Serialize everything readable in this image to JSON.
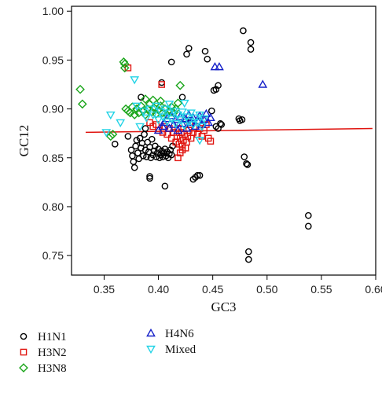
{
  "chart_data": {
    "type": "scatter",
    "xlabel": "GC3",
    "ylabel": "GC12",
    "xlim": [
      0.32,
      0.6
    ],
    "ylim": [
      0.73,
      1.005
    ],
    "xticks": [
      0.35,
      0.4,
      0.45,
      0.5,
      0.55,
      0.6
    ],
    "xtick_labels": [
      "0.35",
      "0.40",
      "0.45",
      "0.50",
      "0.55",
      "0.60"
    ],
    "yticks": [
      0.75,
      0.8,
      0.85,
      0.9,
      0.95,
      1.0
    ],
    "ytick_labels": [
      "0.75",
      "0.80",
      "0.85",
      "0.90",
      "0.95",
      "1.00"
    ],
    "grid": false,
    "legend_position": "bottom",
    "trend_line": {
      "x": [
        0.333,
        0.597
      ],
      "y": [
        0.876,
        0.88
      ],
      "color": "#e0140f"
    },
    "series": [
      {
        "name": "H1N1",
        "marker": "circle",
        "color": "#000000",
        "points": [
          [
            0.36,
            0.864
          ],
          [
            0.372,
            0.872
          ],
          [
            0.375,
            0.858
          ],
          [
            0.376,
            0.852
          ],
          [
            0.377,
            0.846
          ],
          [
            0.378,
            0.84
          ],
          [
            0.379,
            0.862
          ],
          [
            0.38,
            0.868
          ],
          [
            0.381,
            0.855
          ],
          [
            0.382,
            0.849
          ],
          [
            0.383,
            0.87
          ],
          [
            0.384,
            0.86
          ],
          [
            0.385,
            0.865
          ],
          [
            0.386,
            0.852
          ],
          [
            0.387,
            0.874
          ],
          [
            0.388,
            0.858
          ],
          [
            0.389,
            0.851
          ],
          [
            0.39,
            0.866
          ],
          [
            0.391,
            0.856
          ],
          [
            0.392,
            0.861
          ],
          [
            0.393,
            0.85
          ],
          [
            0.394,
            0.869
          ],
          [
            0.395,
            0.853
          ],
          [
            0.396,
            0.857
          ],
          [
            0.397,
            0.862
          ],
          [
            0.398,
            0.851
          ],
          [
            0.399,
            0.855
          ],
          [
            0.4,
            0.859
          ],
          [
            0.401,
            0.85
          ],
          [
            0.402,
            0.853
          ],
          [
            0.403,
            0.857
          ],
          [
            0.404,
            0.851
          ],
          [
            0.405,
            0.855
          ],
          [
            0.406,
            0.859
          ],
          [
            0.407,
            0.852
          ],
          [
            0.408,
            0.856
          ],
          [
            0.409,
            0.85
          ],
          [
            0.41,
            0.854
          ],
          [
            0.411,
            0.858
          ],
          [
            0.412,
            0.853
          ],
          [
            0.413,
            0.862
          ],
          [
            0.384,
            0.912
          ],
          [
            0.388,
            0.88
          ],
          [
            0.392,
            0.829
          ],
          [
            0.392,
            0.831
          ],
          [
            0.406,
            0.821
          ],
          [
            0.403,
            0.927
          ],
          [
            0.412,
            0.948
          ],
          [
            0.426,
            0.956
          ],
          [
            0.428,
            0.962
          ],
          [
            0.422,
            0.912
          ],
          [
            0.425,
            0.889
          ],
          [
            0.432,
            0.828
          ],
          [
            0.434,
            0.83
          ],
          [
            0.436,
            0.832
          ],
          [
            0.438,
            0.832
          ],
          [
            0.443,
            0.959
          ],
          [
            0.445,
            0.951
          ],
          [
            0.449,
            0.898
          ],
          [
            0.451,
            0.919
          ],
          [
            0.453,
            0.92
          ],
          [
            0.455,
            0.924
          ],
          [
            0.455,
            0.88
          ],
          [
            0.457,
            0.885
          ],
          [
            0.458,
            0.884
          ],
          [
            0.453,
            0.882
          ],
          [
            0.474,
            0.89
          ],
          [
            0.475,
            0.888
          ],
          [
            0.477,
            0.889
          ],
          [
            0.479,
            0.851
          ],
          [
            0.481,
            0.844
          ],
          [
            0.482,
            0.843
          ],
          [
            0.478,
            0.98
          ],
          [
            0.485,
            0.968
          ],
          [
            0.485,
            0.961
          ],
          [
            0.483,
            0.754
          ],
          [
            0.483,
            0.746
          ],
          [
            0.538,
            0.791
          ],
          [
            0.538,
            0.78
          ]
        ]
      },
      {
        "name": "H3N2",
        "marker": "square",
        "color": "#e0140f",
        "points": [
          [
            0.372,
            0.942
          ],
          [
            0.403,
            0.925
          ],
          [
            0.392,
            0.886
          ],
          [
            0.395,
            0.882
          ],
          [
            0.398,
            0.884
          ],
          [
            0.4,
            0.878
          ],
          [
            0.404,
            0.876
          ],
          [
            0.406,
            0.882
          ],
          [
            0.408,
            0.874
          ],
          [
            0.41,
            0.88
          ],
          [
            0.412,
            0.87
          ],
          [
            0.414,
            0.876
          ],
          [
            0.416,
            0.866
          ],
          [
            0.417,
            0.872
          ],
          [
            0.418,
            0.88
          ],
          [
            0.419,
            0.864
          ],
          [
            0.42,
            0.87
          ],
          [
            0.421,
            0.876
          ],
          [
            0.422,
            0.862
          ],
          [
            0.423,
            0.868
          ],
          [
            0.424,
            0.874
          ],
          [
            0.425,
            0.86
          ],
          [
            0.426,
            0.866
          ],
          [
            0.427,
            0.872
          ],
          [
            0.428,
            0.878
          ],
          [
            0.429,
            0.884
          ],
          [
            0.43,
            0.87
          ],
          [
            0.432,
            0.876
          ],
          [
            0.434,
            0.882
          ],
          [
            0.436,
            0.874
          ],
          [
            0.438,
            0.88
          ],
          [
            0.44,
            0.872
          ],
          [
            0.442,
            0.878
          ],
          [
            0.444,
            0.884
          ],
          [
            0.446,
            0.87
          ],
          [
            0.448,
            0.867
          ],
          [
            0.418,
            0.85
          ],
          [
            0.42,
            0.855
          ],
          [
            0.422,
            0.858
          ]
        ]
      },
      {
        "name": "H3N8",
        "marker": "diamond",
        "color": "#1aa51a",
        "points": [
          [
            0.328,
            0.92
          ],
          [
            0.33,
            0.905
          ],
          [
            0.356,
            0.872
          ],
          [
            0.358,
            0.874
          ],
          [
            0.368,
            0.948
          ],
          [
            0.369,
            0.946
          ],
          [
            0.369,
            0.942
          ],
          [
            0.37,
            0.9
          ],
          [
            0.372,
            0.898
          ],
          [
            0.374,
            0.896
          ],
          [
            0.376,
            0.902
          ],
          [
            0.378,
            0.894
          ],
          [
            0.38,
            0.9
          ],
          [
            0.382,
            0.896
          ],
          [
            0.384,
            0.903
          ],
          [
            0.386,
            0.898
          ],
          [
            0.388,
            0.894
          ],
          [
            0.39,
            0.9
          ],
          [
            0.392,
            0.905
          ],
          [
            0.394,
            0.897
          ],
          [
            0.396,
            0.901
          ],
          [
            0.398,
            0.895
          ],
          [
            0.4,
            0.899
          ],
          [
            0.402,
            0.903
          ],
          [
            0.404,
            0.896
          ],
          [
            0.406,
            0.9
          ],
          [
            0.408,
            0.894
          ],
          [
            0.41,
            0.898
          ],
          [
            0.412,
            0.902
          ],
          [
            0.414,
            0.896
          ],
          [
            0.416,
            0.9
          ],
          [
            0.418,
            0.906
          ],
          [
            0.42,
            0.924
          ],
          [
            0.388,
            0.91
          ],
          [
            0.395,
            0.909
          ],
          [
            0.402,
            0.908
          ]
        ]
      },
      {
        "name": "H4N6",
        "marker": "triangle-up",
        "color": "#1520c8",
        "points": [
          [
            0.405,
            0.886
          ],
          [
            0.408,
            0.89
          ],
          [
            0.41,
            0.88
          ],
          [
            0.412,
            0.893
          ],
          [
            0.414,
            0.884
          ],
          [
            0.416,
            0.889
          ],
          [
            0.418,
            0.878
          ],
          [
            0.42,
            0.892
          ],
          [
            0.422,
            0.885
          ],
          [
            0.424,
            0.89
          ],
          [
            0.426,
            0.88
          ],
          [
            0.428,
            0.894
          ],
          [
            0.43,
            0.886
          ],
          [
            0.432,
            0.891
          ],
          [
            0.434,
            0.882
          ],
          [
            0.436,
            0.888
          ],
          [
            0.438,
            0.893
          ],
          [
            0.44,
            0.884
          ],
          [
            0.442,
            0.889
          ],
          [
            0.444,
            0.895
          ],
          [
            0.446,
            0.886
          ],
          [
            0.448,
            0.891
          ],
          [
            0.4,
            0.878
          ],
          [
            0.404,
            0.882
          ],
          [
            0.452,
            0.943
          ],
          [
            0.456,
            0.943
          ],
          [
            0.496,
            0.925
          ]
        ]
      },
      {
        "name": "Mixed",
        "marker": "triangle-down",
        "color": "#22d3e6",
        "points": [
          [
            0.352,
            0.876
          ],
          [
            0.356,
            0.894
          ],
          [
            0.365,
            0.886
          ],
          [
            0.378,
            0.93
          ],
          [
            0.38,
            0.903
          ],
          [
            0.383,
            0.882
          ],
          [
            0.386,
            0.898
          ],
          [
            0.389,
            0.891
          ],
          [
            0.392,
            0.9
          ],
          [
            0.395,
            0.894
          ],
          [
            0.398,
            0.903
          ],
          [
            0.4,
            0.889
          ],
          [
            0.402,
            0.897
          ],
          [
            0.404,
            0.892
          ],
          [
            0.406,
            0.9
          ],
          [
            0.408,
            0.887
          ],
          [
            0.41,
            0.896
          ],
          [
            0.412,
            0.89
          ],
          [
            0.414,
            0.898
          ],
          [
            0.416,
            0.885
          ],
          [
            0.418,
            0.894
          ],
          [
            0.42,
            0.889
          ],
          [
            0.422,
            0.897
          ],
          [
            0.424,
            0.883
          ],
          [
            0.426,
            0.892
          ],
          [
            0.428,
            0.887
          ],
          [
            0.43,
            0.896
          ],
          [
            0.432,
            0.884
          ],
          [
            0.434,
            0.891
          ],
          [
            0.436,
            0.886
          ],
          [
            0.438,
            0.894
          ],
          [
            0.44,
            0.882
          ],
          [
            0.442,
            0.89
          ],
          [
            0.438,
            0.868
          ],
          [
            0.424,
            0.906
          ],
          [
            0.41,
            0.905
          ]
        ]
      }
    ]
  }
}
